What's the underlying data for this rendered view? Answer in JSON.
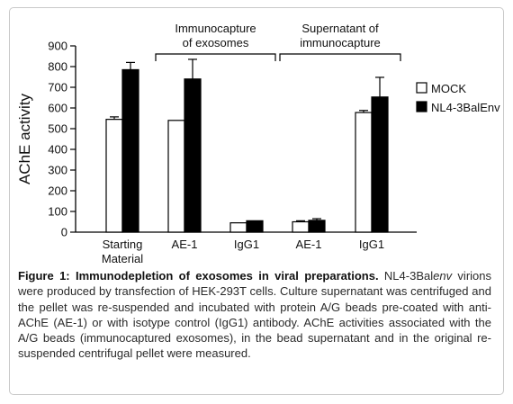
{
  "chart_data": {
    "type": "bar",
    "ylabel": "AChE activity",
    "ylim": [
      0,
      900
    ],
    "yticks": [
      0,
      100,
      200,
      300,
      400,
      500,
      600,
      700,
      800,
      900
    ],
    "categories": [
      "Starting\nMaterial",
      "AE-1",
      "IgG1",
      "AE-1",
      "IgG1"
    ],
    "series": [
      {
        "name": "MOCK",
        "color": "#ffffff",
        "values": [
          545,
          540,
          45,
          50,
          578
        ],
        "errors": [
          12,
          0,
          0,
          5,
          10
        ]
      },
      {
        "name": "NL4-3BalEnv",
        "color": "#000000",
        "values": [
          785,
          740,
          55,
          57,
          653
        ],
        "errors": [
          35,
          95,
          0,
          8,
          95
        ]
      }
    ],
    "groups": [
      {
        "label": "Immunocapture\nof exosomes",
        "categories": [
          1,
          2
        ]
      },
      {
        "label": "Supernatant of\nimmunocapture",
        "categories": [
          3,
          4
        ]
      }
    ],
    "legend_placement": "right",
    "grid": false
  },
  "caption": {
    "bold": "Figure 1: Immunodepletion of exosomes in viral preparations.",
    "pre_italic": " NL4-3Bal",
    "italic": "env",
    "rest": " virions were produced by transfection of HEK-293T cells. Culture supernatant was centrifuged and the pellet was re-suspended and incubated with protein A/G beads pre-coated with anti-AChE (AE-1) or with isotype control (IgG1) antibody. AChE activities associated with the A/G beads (immunocaptured exosomes), in the bead supernatant and in the original re-suspended centrifugal pellet were measured."
  }
}
